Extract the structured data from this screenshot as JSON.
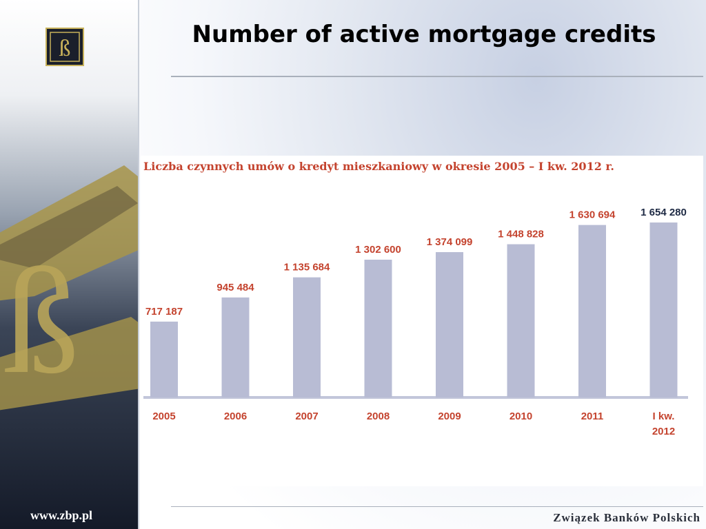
{
  "slide": {
    "title": "Number of active mortgage  credits",
    "url": "www.zbp.pl",
    "brand": "Związek Banków Polskich"
  },
  "chart_data": {
    "type": "bar",
    "title": "Liczba czynnych umów o kredyt mieszkaniowy w okresie 2005 – I kw. 2012 r.",
    "categories": [
      "2005",
      "2006",
      "2007",
      "2008",
      "2009",
      "2010",
      "2011",
      "I kw. 2012"
    ],
    "values": [
      717187,
      945484,
      1135684,
      1302600,
      1374099,
      1448828,
      1630694,
      1654280
    ],
    "value_labels": [
      "717 187",
      "945 484",
      "1 135 684",
      "1 302 600",
      "1 374 099",
      "1 448 828",
      "1 630 694",
      "1 654 280"
    ],
    "ylim": [
      0,
      1700000
    ],
    "grid": false,
    "colors": {
      "bar": "#b8bcd4",
      "label": "#c4432e",
      "last_label": "#1e2a44"
    }
  }
}
